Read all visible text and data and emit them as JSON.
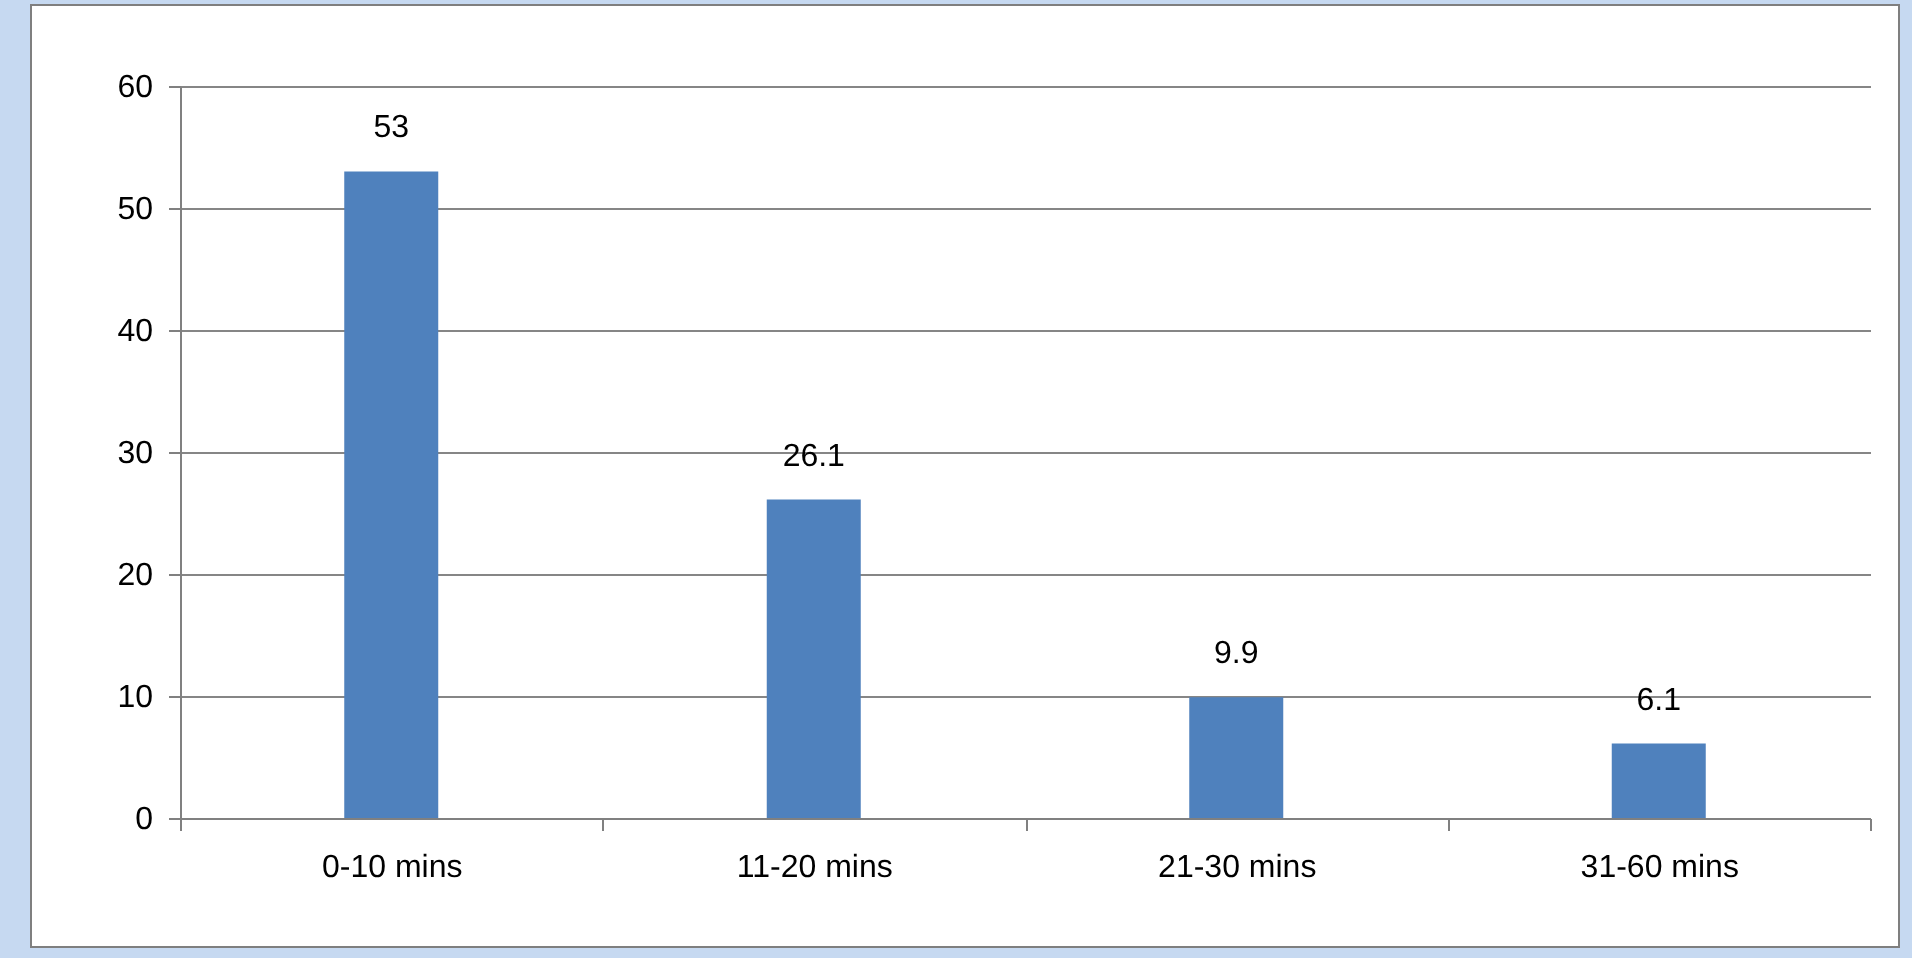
{
  "chart_data": {
    "type": "bar",
    "categories": [
      "0-10 mins",
      "11-20 mins",
      "21-30 mins",
      "31-60 mins"
    ],
    "values": [
      53,
      26.1,
      9.9,
      6.1
    ],
    "color": "#4f81bd",
    "ylim": [
      0,
      60
    ],
    "yticks": [
      0,
      10,
      20,
      30,
      40,
      50,
      60
    ],
    "grid": "y",
    "data_labels": true
  }
}
